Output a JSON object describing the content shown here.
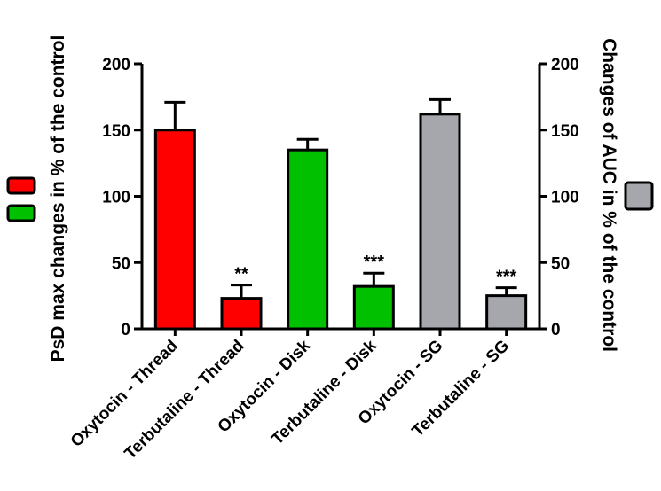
{
  "chart_data": {
    "type": "bar",
    "categories": [
      "Oxytocin - Thread",
      "Terbutaline - Thread",
      "Oxytocin - Disk",
      "Terbutaline - Disk",
      "Oxytocin - SG",
      "Terbutaline - SG"
    ],
    "values": [
      150,
      23,
      135,
      32,
      162,
      25
    ],
    "errors": [
      21,
      10,
      8,
      10,
      11,
      6
    ],
    "significance": [
      "",
      "**",
      "",
      "***",
      "",
      "***"
    ],
    "colors": [
      "#ff0000",
      "#ff0000",
      "#00c000",
      "#00c000",
      "#a6a6ad",
      "#a6a6ad"
    ],
    "left_axis": {
      "label": "PsD max changes in % of the control",
      "ylim": [
        0,
        200
      ],
      "ticks": [
        "0",
        "50",
        "100",
        "150",
        "200"
      ]
    },
    "right_axis": {
      "label": "Changes of AUC in % of the control",
      "ylim": [
        0,
        200
      ],
      "ticks": [
        "0",
        "50",
        "100",
        "150",
        "200"
      ]
    },
    "legend_swatches": {
      "left": [
        "#ff0000",
        "#00c000"
      ],
      "right": [
        "#a6a6ad"
      ]
    }
  }
}
